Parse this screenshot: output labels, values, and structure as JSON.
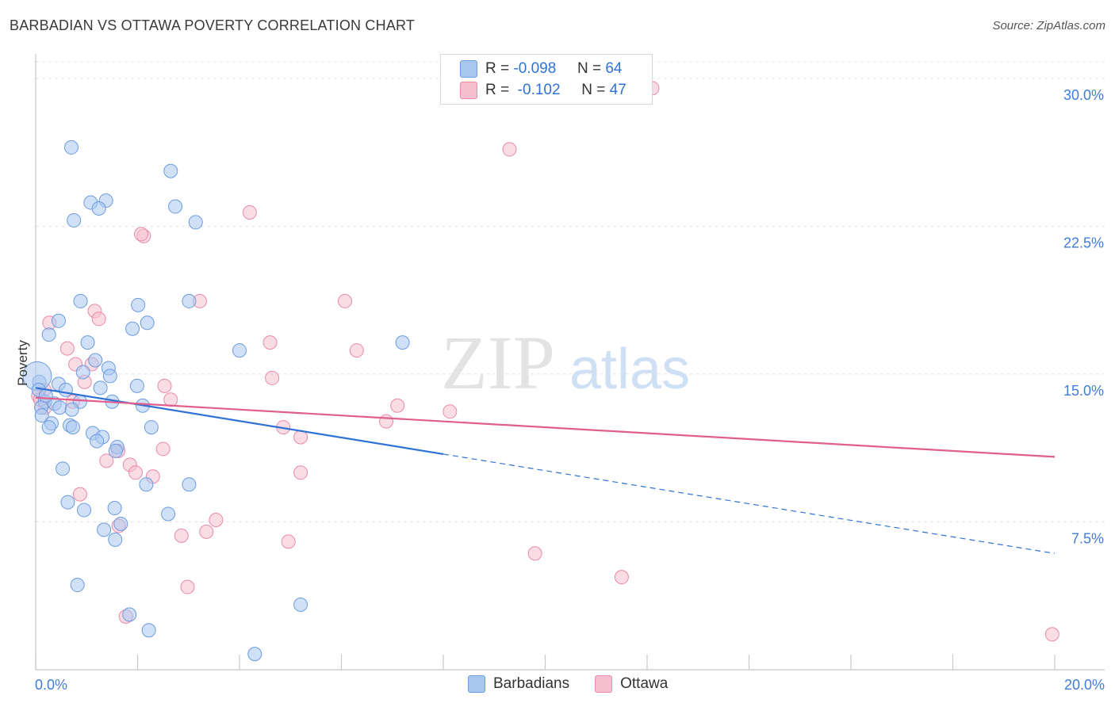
{
  "header": {
    "title": "BARBADIAN VS OTTAWA POVERTY CORRELATION CHART",
    "source": "Source: ZipAtlas.com"
  },
  "legend": {
    "rows": [
      {
        "r_label": "R =",
        "r_value": "-0.098",
        "n_label": "N =",
        "n_value": "64"
      },
      {
        "r_label": "R =",
        "r_value": "-0.102",
        "n_label": "N =",
        "n_value": "47"
      }
    ]
  },
  "bottom_legend": [
    "Barbadians",
    "Ottawa"
  ],
  "watermark": {
    "zip": "ZIP",
    "atlas": "atlas"
  },
  "colors": {
    "blue_fill": "#a9c8f0",
    "blue_stroke": "#6b9be0",
    "blue_line": "#2f72d4",
    "pink_fill": "#f6bfd0",
    "pink_stroke": "#e98aa8",
    "pink_line": "#e05f8c",
    "grid": "#e4e4e4",
    "tick_label": "#3f7dd8"
  },
  "chart_data": {
    "type": "scatter",
    "title": "BARBADIAN VS OTTAWA POVERTY CORRELATION CHART",
    "ylabel": "Poverty",
    "xlabel": "",
    "xlim": [
      0,
      20
    ],
    "ylim": [
      0,
      31
    ],
    "x_tick_labels": [
      "0.0%",
      "20.0%"
    ],
    "y_ticks": [
      7.5,
      15.0,
      22.5,
      30.0
    ],
    "y_tick_labels": [
      "7.5%",
      "15.0%",
      "22.5%",
      "30.0%"
    ],
    "series": [
      {
        "name": "Barbadians",
        "r": -0.098,
        "n": 64,
        "trend": {
          "x0": 0.0,
          "y0": 14.3,
          "x_solid_end": 8.0,
          "x1": 20.0,
          "y1": 5.9
        },
        "points": [
          [
            0.7,
            26.5
          ],
          [
            2.65,
            25.3
          ],
          [
            1.08,
            23.7
          ],
          [
            1.38,
            23.8
          ],
          [
            1.24,
            23.4
          ],
          [
            2.74,
            23.5
          ],
          [
            0.75,
            22.8
          ],
          [
            3.14,
            22.7
          ],
          [
            0.88,
            18.7
          ],
          [
            2.01,
            18.5
          ],
          [
            3.01,
            18.7
          ],
          [
            0.45,
            17.7
          ],
          [
            1.9,
            17.3
          ],
          [
            2.19,
            17.6
          ],
          [
            0.26,
            17.0
          ],
          [
            1.02,
            16.6
          ],
          [
            4.0,
            16.2
          ],
          [
            7.2,
            16.6
          ],
          [
            1.17,
            15.7
          ],
          [
            0.93,
            15.1
          ],
          [
            1.43,
            15.3
          ],
          [
            1.46,
            14.9
          ],
          [
            0.07,
            14.6
          ],
          [
            0.45,
            14.5
          ],
          [
            1.99,
            14.4
          ],
          [
            0.59,
            14.2
          ],
          [
            1.27,
            14.3
          ],
          [
            0.18,
            13.6
          ],
          [
            0.37,
            13.5
          ],
          [
            0.87,
            13.6
          ],
          [
            1.5,
            13.6
          ],
          [
            2.1,
            13.4
          ],
          [
            0.11,
            13.3
          ],
          [
            0.47,
            13.3
          ],
          [
            0.71,
            13.2
          ],
          [
            0.12,
            12.9
          ],
          [
            0.31,
            12.5
          ],
          [
            0.67,
            12.4
          ],
          [
            0.26,
            12.3
          ],
          [
            0.73,
            12.3
          ],
          [
            2.27,
            12.3
          ],
          [
            1.12,
            12.0
          ],
          [
            1.31,
            11.8
          ],
          [
            1.2,
            11.6
          ],
          [
            1.6,
            11.3
          ],
          [
            1.57,
            11.1
          ],
          [
            0.53,
            10.2
          ],
          [
            2.17,
            9.4
          ],
          [
            3.01,
            9.4
          ],
          [
            0.63,
            8.5
          ],
          [
            0.95,
            8.1
          ],
          [
            1.55,
            8.2
          ],
          [
            2.6,
            7.9
          ],
          [
            1.67,
            7.4
          ],
          [
            1.34,
            7.1
          ],
          [
            1.56,
            6.6
          ],
          [
            0.82,
            4.3
          ],
          [
            5.2,
            3.3
          ],
          [
            1.84,
            2.8
          ],
          [
            2.22,
            2.0
          ],
          [
            4.3,
            0.8
          ],
          [
            0.03,
            14.9
          ],
          [
            0.06,
            14.2
          ],
          [
            0.2,
            13.9
          ]
        ]
      },
      {
        "name": "Ottawa",
        "r": -0.102,
        "n": 47,
        "trend": {
          "x0": 0.0,
          "y0": 13.8,
          "x1": 20.0,
          "y1": 10.8
        },
        "points": [
          [
            12.1,
            29.5
          ],
          [
            9.3,
            26.4
          ],
          [
            4.2,
            23.2
          ],
          [
            2.12,
            22.0
          ],
          [
            2.07,
            22.1
          ],
          [
            6.07,
            18.7
          ],
          [
            3.22,
            18.7
          ],
          [
            1.16,
            18.2
          ],
          [
            1.24,
            17.8
          ],
          [
            0.27,
            17.6
          ],
          [
            4.6,
            16.6
          ],
          [
            6.3,
            16.2
          ],
          [
            0.62,
            16.3
          ],
          [
            0.78,
            15.5
          ],
          [
            1.1,
            15.5
          ],
          [
            4.64,
            14.8
          ],
          [
            2.53,
            14.4
          ],
          [
            0.96,
            14.6
          ],
          [
            0.17,
            14.2
          ],
          [
            0.05,
            13.9
          ],
          [
            2.65,
            13.7
          ],
          [
            0.73,
            13.6
          ],
          [
            0.18,
            13.3
          ],
          [
            7.1,
            13.4
          ],
          [
            8.13,
            13.1
          ],
          [
            6.88,
            12.6
          ],
          [
            4.86,
            12.3
          ],
          [
            5.2,
            11.8
          ],
          [
            2.5,
            11.2
          ],
          [
            1.62,
            11.1
          ],
          [
            1.39,
            10.6
          ],
          [
            1.85,
            10.4
          ],
          [
            1.96,
            10.0
          ],
          [
            2.3,
            9.8
          ],
          [
            5.2,
            10.0
          ],
          [
            0.87,
            8.9
          ],
          [
            3.54,
            7.6
          ],
          [
            1.63,
            7.3
          ],
          [
            3.35,
            7.0
          ],
          [
            2.86,
            6.8
          ],
          [
            4.96,
            6.5
          ],
          [
            9.8,
            5.9
          ],
          [
            11.5,
            4.7
          ],
          [
            2.98,
            4.2
          ],
          [
            1.77,
            2.7
          ],
          [
            19.95,
            1.8
          ],
          [
            0.09,
            13.7
          ]
        ]
      }
    ]
  }
}
